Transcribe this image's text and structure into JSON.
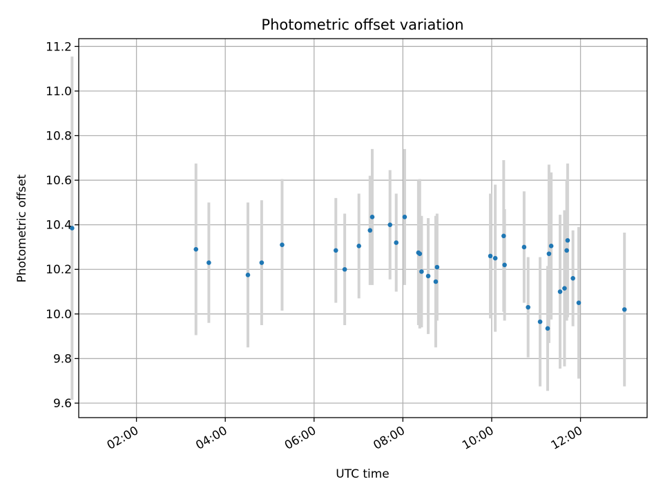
{
  "chart_data": {
    "type": "scatter",
    "title": "Photometric offset variation",
    "xlabel": "UTC time",
    "ylabel": "Photometric offset",
    "x_unit": "hours UTC",
    "xlim": [
      0.7,
      13.5
    ],
    "ylim": [
      9.535,
      11.235
    ],
    "grid": true,
    "legend": "none",
    "x_ticks": [
      {
        "value": 2,
        "label": "02:00"
      },
      {
        "value": 4,
        "label": "04:00"
      },
      {
        "value": 6,
        "label": "06:00"
      },
      {
        "value": 8,
        "label": "08:00"
      },
      {
        "value": 10,
        "label": "10:00"
      },
      {
        "value": 12,
        "label": "12:00"
      }
    ],
    "y_ticks": [
      {
        "value": 9.6,
        "label": "9.6"
      },
      {
        "value": 9.8,
        "label": "9.8"
      },
      {
        "value": 10.0,
        "label": "10.0"
      },
      {
        "value": 10.2,
        "label": "10.2"
      },
      {
        "value": 10.4,
        "label": "10.4"
      },
      {
        "value": 10.6,
        "label": "10.6"
      },
      {
        "value": 10.8,
        "label": "10.8"
      },
      {
        "value": 11.0,
        "label": "11.0"
      },
      {
        "value": 11.2,
        "label": "11.2"
      }
    ],
    "marker_color": "#1f77b4",
    "errorbar_color": "#d3d3d3",
    "points": [
      {
        "x": 0.55,
        "y": 10.385,
        "err": 0.77
      },
      {
        "x": 3.34,
        "y": 10.29,
        "err": 0.385
      },
      {
        "x": 3.63,
        "y": 10.23,
        "err": 0.27
      },
      {
        "x": 4.51,
        "y": 10.175,
        "err": 0.325
      },
      {
        "x": 4.82,
        "y": 10.23,
        "err": 0.28
      },
      {
        "x": 5.28,
        "y": 10.31,
        "err": 0.295
      },
      {
        "x": 6.49,
        "y": 10.285,
        "err": 0.235
      },
      {
        "x": 6.69,
        "y": 10.2,
        "err": 0.25
      },
      {
        "x": 7.01,
        "y": 10.305,
        "err": 0.235
      },
      {
        "x": 7.26,
        "y": 10.375,
        "err": 0.245
      },
      {
        "x": 7.31,
        "y": 10.435,
        "err": 0.305
      },
      {
        "x": 7.71,
        "y": 10.4,
        "err": 0.245
      },
      {
        "x": 7.85,
        "y": 10.32,
        "err": 0.22
      },
      {
        "x": 8.04,
        "y": 10.435,
        "err": 0.305
      },
      {
        "x": 8.35,
        "y": 10.275,
        "err": 0.325
      },
      {
        "x": 8.38,
        "y": 10.27,
        "err": 0.335
      },
      {
        "x": 8.42,
        "y": 10.19,
        "err": 0.25
      },
      {
        "x": 8.57,
        "y": 10.17,
        "err": 0.26
      },
      {
        "x": 8.74,
        "y": 10.145,
        "err": 0.295
      },
      {
        "x": 8.77,
        "y": 10.21,
        "err": 0.24
      },
      {
        "x": 9.97,
        "y": 10.26,
        "err": 0.28
      },
      {
        "x": 10.08,
        "y": 10.25,
        "err": 0.33
      },
      {
        "x": 10.27,
        "y": 10.35,
        "err": 0.34
      },
      {
        "x": 10.29,
        "y": 10.22,
        "err": 0.25
      },
      {
        "x": 10.73,
        "y": 10.3,
        "err": 0.25
      },
      {
        "x": 10.82,
        "y": 10.03,
        "err": 0.225
      },
      {
        "x": 11.09,
        "y": 9.965,
        "err": 0.29
      },
      {
        "x": 11.26,
        "y": 9.935,
        "err": 0.28
      },
      {
        "x": 11.29,
        "y": 10.27,
        "err": 0.4
      },
      {
        "x": 11.34,
        "y": 10.305,
        "err": 0.33
      },
      {
        "x": 11.54,
        "y": 10.1,
        "err": 0.345
      },
      {
        "x": 11.64,
        "y": 10.115,
        "err": 0.35
      },
      {
        "x": 11.69,
        "y": 10.285,
        "err": 0.315
      },
      {
        "x": 11.71,
        "y": 10.33,
        "err": 0.345
      },
      {
        "x": 11.83,
        "y": 10.16,
        "err": 0.215
      },
      {
        "x": 11.96,
        "y": 10.05,
        "err": 0.34
      },
      {
        "x": 12.99,
        "y": 10.02,
        "err": 0.345
      }
    ]
  }
}
